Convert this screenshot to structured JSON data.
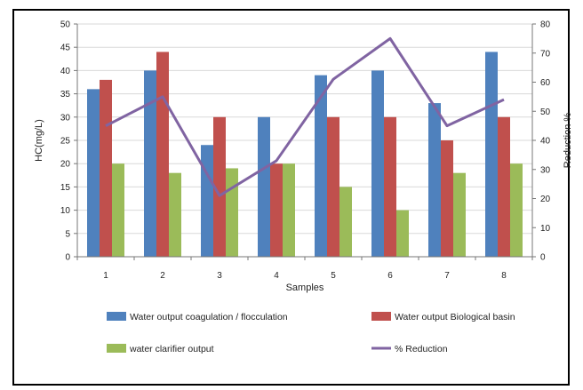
{
  "chart_data": {
    "type": "bar",
    "categories": [
      "1",
      "2",
      "3",
      "4",
      "5",
      "6",
      "7",
      "8"
    ],
    "xlabel": "Samples",
    "ylabel": "HC(mg/L)",
    "y2label": "Reduction %",
    "ylim": [
      0,
      50
    ],
    "y2lim": [
      0,
      80
    ],
    "yticks": [
      "0",
      "5",
      "10",
      "15",
      "20",
      "25",
      "30",
      "35",
      "40",
      "45",
      "50"
    ],
    "y2ticks": [
      "0",
      "10",
      "20",
      "30",
      "40",
      "50",
      "60",
      "70",
      "80"
    ],
    "grid": true,
    "legend_position": "bottom",
    "series": [
      {
        "name": "Water output  coagulation / flocculation",
        "type": "bar",
        "axis": "left",
        "color": "#4f81bd",
        "values": [
          36,
          40,
          24,
          30,
          39,
          40,
          33,
          44
        ]
      },
      {
        "name": "Water output Biological basin",
        "type": "bar",
        "axis": "left",
        "color": "#c0504d",
        "values": [
          38,
          44,
          30,
          20,
          30,
          30,
          25,
          30
        ]
      },
      {
        "name": "water clarifier output",
        "type": "bar",
        "axis": "left",
        "color": "#9bbb59",
        "values": [
          20,
          18,
          19,
          20,
          15,
          10,
          18,
          20
        ]
      },
      {
        "name": "% Reduction",
        "type": "line",
        "axis": "right",
        "color": "#8064a2",
        "values": [
          45,
          55,
          21,
          33,
          61,
          75,
          45,
          54
        ]
      }
    ]
  }
}
